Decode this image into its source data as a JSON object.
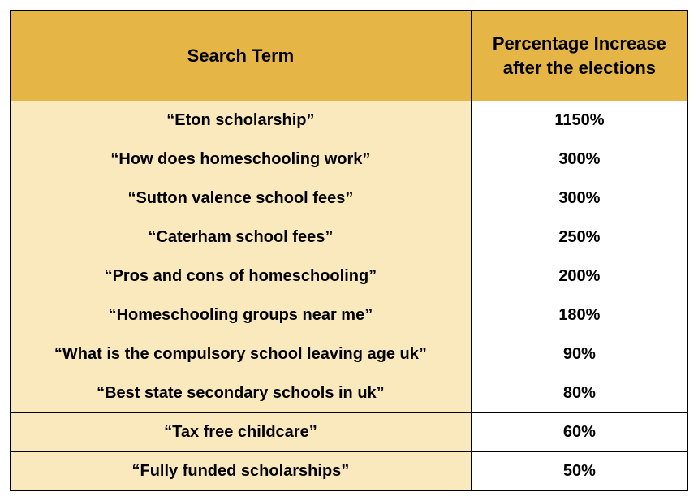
{
  "table": {
    "header_bg": "#e5b645",
    "term_bg": "#fae9bc",
    "pct_bg": "#ffffff",
    "border_color": "#000000",
    "columns": [
      {
        "key": "term",
        "label": "Search Term",
        "width": "68%"
      },
      {
        "key": "pct",
        "label": "Percentage Increase after the elections",
        "width": "32%"
      }
    ],
    "rows": [
      {
        "term": "“Eton scholarship”",
        "pct": "1150%"
      },
      {
        "term": "“How does homeschooling work”",
        "pct": "300%"
      },
      {
        "term": "“Sutton valence school fees”",
        "pct": "300%"
      },
      {
        "term": "“Caterham school fees”",
        "pct": "250%"
      },
      {
        "term": "“Pros and cons of homeschooling”",
        "pct": "200%"
      },
      {
        "term": "“Homeschooling groups near me”",
        "pct": "180%"
      },
      {
        "term": "“What is the compulsory school leaving age uk”",
        "pct": "90%"
      },
      {
        "term": "“Best state secondary schools in uk”",
        "pct": "80%"
      },
      {
        "term": "“Tax free childcare”",
        "pct": "60%"
      },
      {
        "term": "“Fully funded scholarships”",
        "pct": "50%"
      }
    ]
  }
}
